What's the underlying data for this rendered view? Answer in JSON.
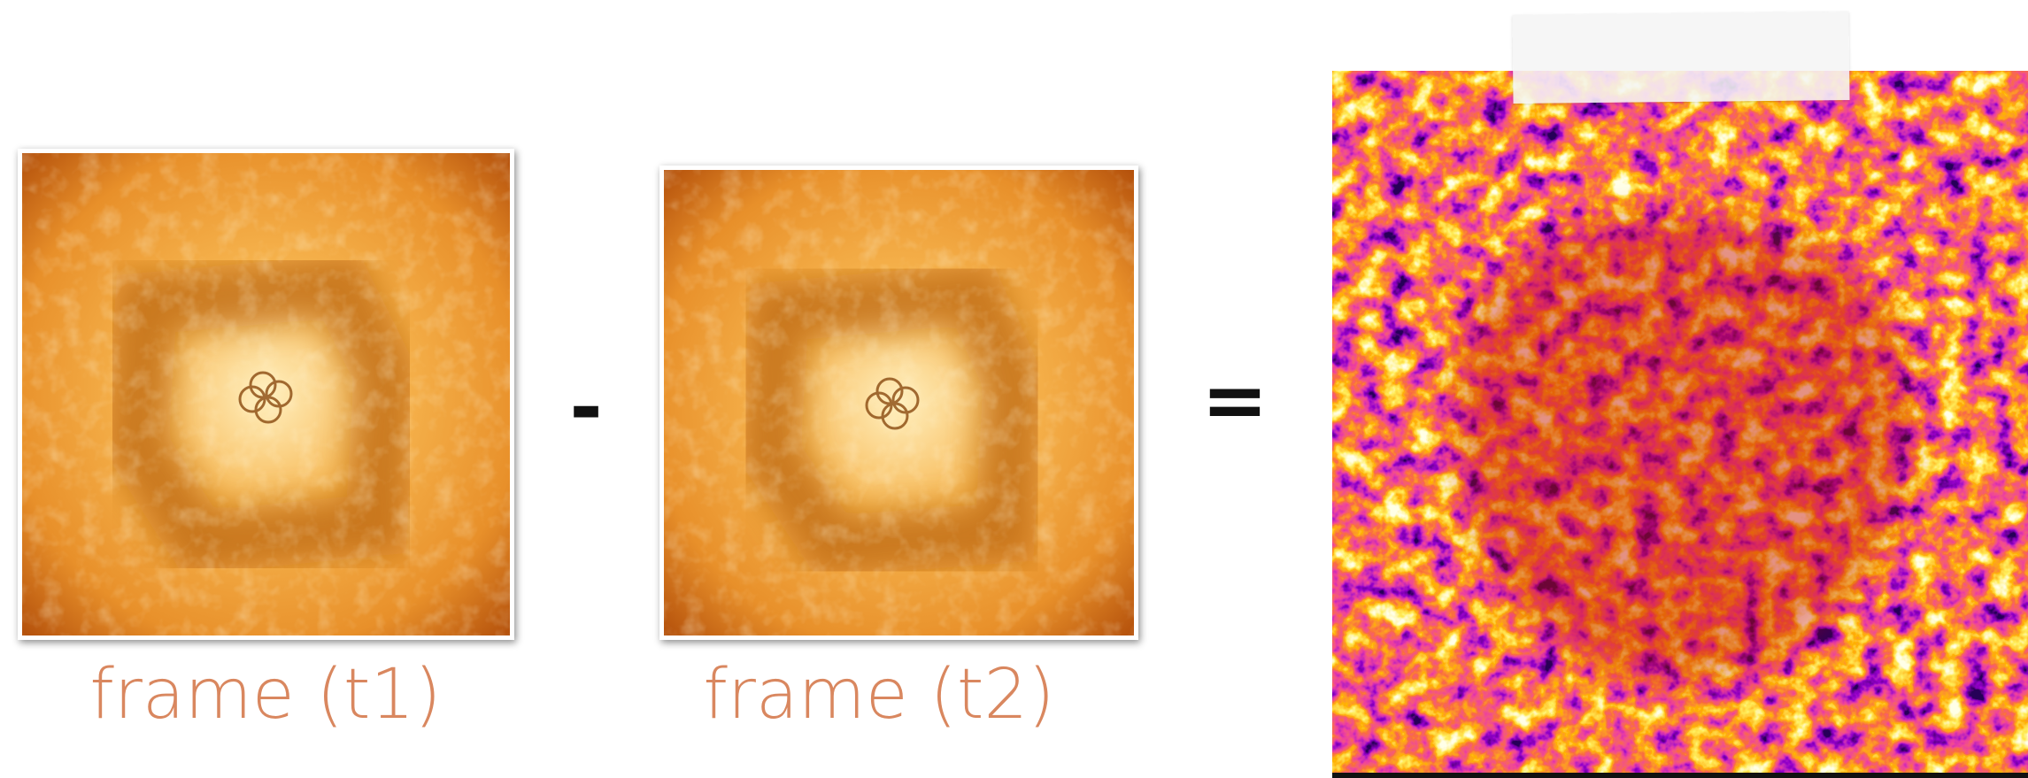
{
  "panels": [
    {
      "label": "frame (t1)"
    },
    {
      "label": "frame (t2)"
    }
  ],
  "operators": [
    "-",
    "="
  ]
}
